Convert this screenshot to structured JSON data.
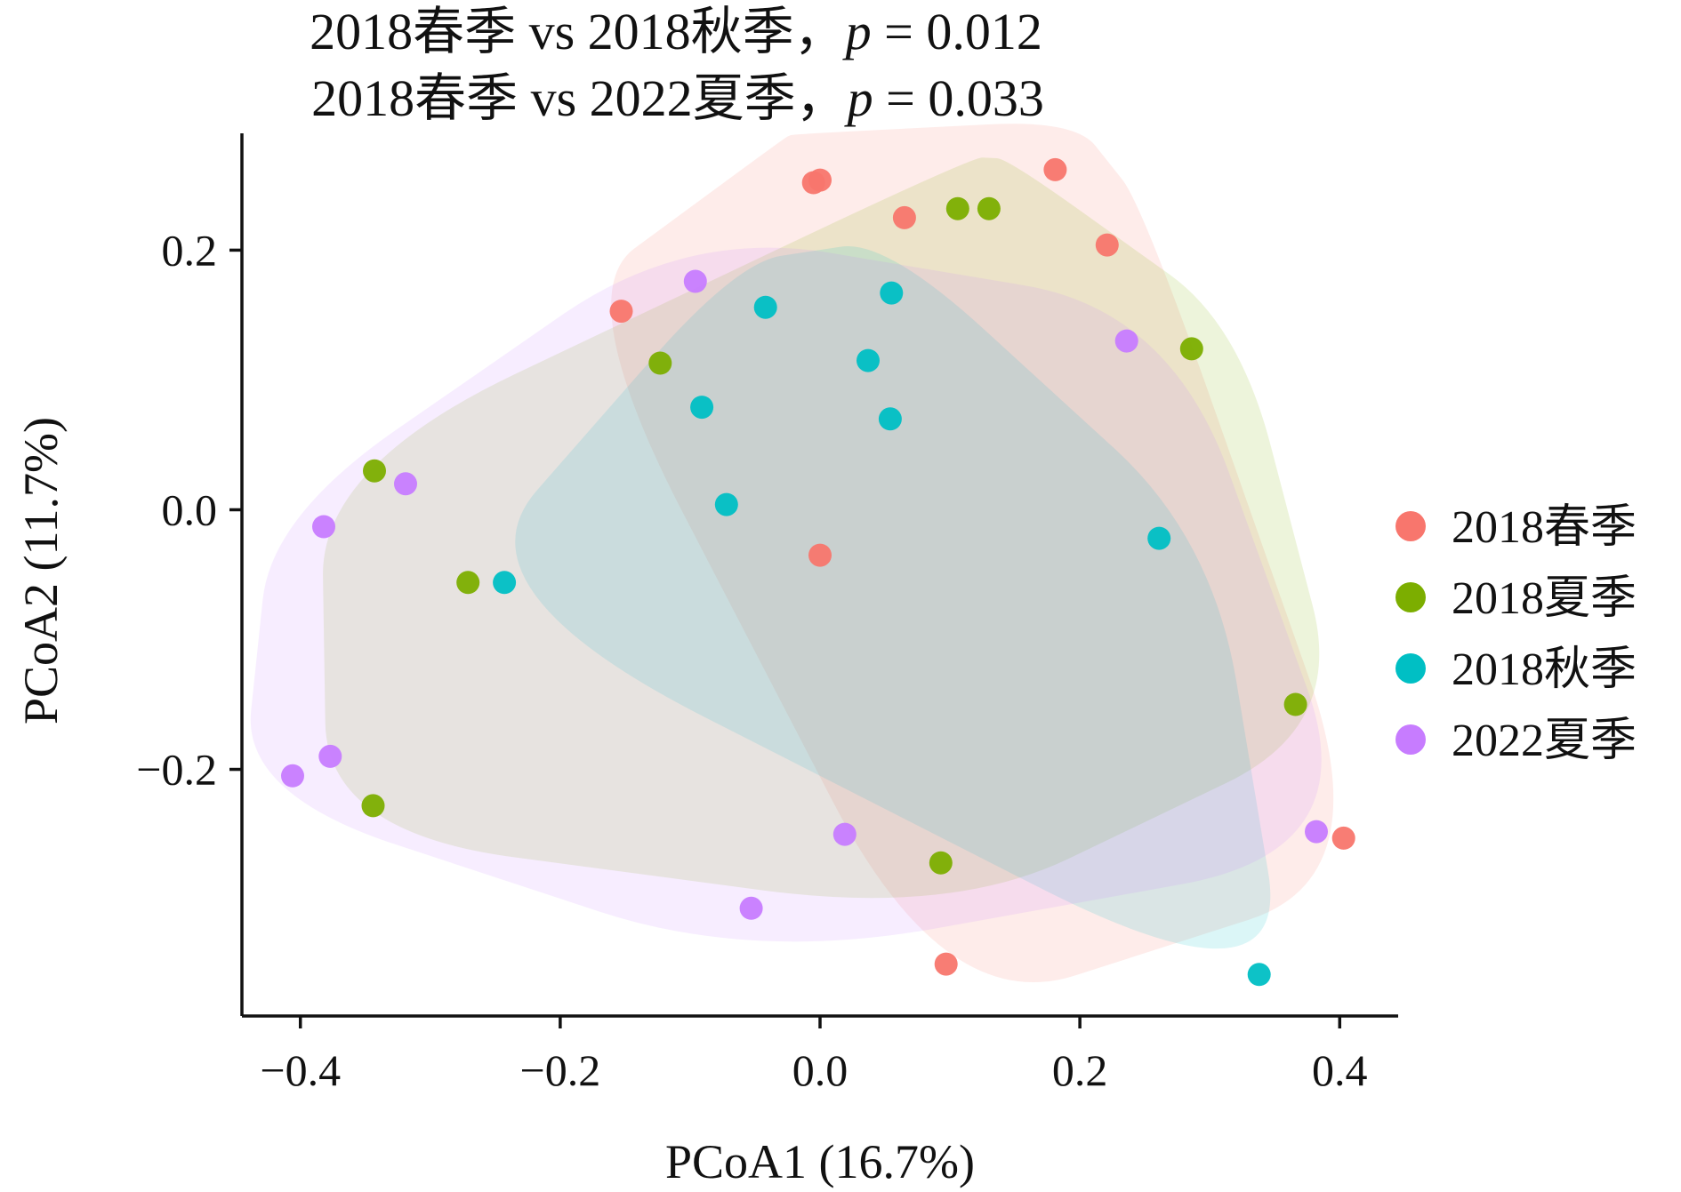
{
  "chart_data": {
    "type": "scatter",
    "title_lines": [
      {
        "prefix": "2018春季 vs 2018秋季，",
        "p_symbol": "p",
        "p_text": " = 0.012"
      },
      {
        "prefix": "2018春季 vs 2022夏季，",
        "p_symbol": "p",
        "p_text": " = 0.033"
      }
    ],
    "xlabel": "PCoA1 (16.7%)",
    "ylabel": "PCoA2 (11.7%)",
    "xlim": [
      -0.445,
      0.445
    ],
    "ylim": [
      -0.39,
      0.29
    ],
    "xticks": [
      -0.4,
      -0.2,
      0.0,
      0.2,
      0.4
    ],
    "xtick_labels": [
      "−0.4",
      "−0.2",
      "0.0",
      "0.2",
      "0.4"
    ],
    "yticks": [
      -0.2,
      0.0,
      0.2
    ],
    "ytick_labels": [
      "−0.2",
      "0.0",
      "0.2"
    ],
    "grid": false,
    "legend_position": "right",
    "series": [
      {
        "name": "2018春季",
        "color": "#F8766D",
        "points": [
          [
            -0.005,
            0.252
          ],
          [
            0.0,
            0.254
          ],
          [
            0.065,
            0.225
          ],
          [
            0.181,
            0.262
          ],
          [
            0.221,
            0.204
          ],
          [
            -0.153,
            0.153
          ],
          [
            0.0,
            -0.035
          ],
          [
            0.097,
            -0.35
          ],
          [
            0.403,
            -0.253
          ]
        ]
      },
      {
        "name": "2018夏季",
        "color": "#7CAE00",
        "points": [
          [
            0.106,
            0.232
          ],
          [
            0.13,
            0.232
          ],
          [
            0.286,
            0.124
          ],
          [
            -0.123,
            0.113
          ],
          [
            -0.343,
            0.03
          ],
          [
            -0.271,
            -0.056
          ],
          [
            0.366,
            -0.15
          ],
          [
            -0.344,
            -0.228
          ],
          [
            0.093,
            -0.272
          ]
        ]
      },
      {
        "name": "2018秋季",
        "color": "#00BFC4",
        "points": [
          [
            -0.042,
            0.156
          ],
          [
            0.055,
            0.167
          ],
          [
            0.037,
            0.115
          ],
          [
            -0.091,
            0.079
          ],
          [
            0.054,
            0.07
          ],
          [
            -0.072,
            0.004
          ],
          [
            0.261,
            -0.022
          ],
          [
            -0.243,
            -0.056
          ],
          [
            0.338,
            -0.358
          ]
        ]
      },
      {
        "name": "2022夏季",
        "color": "#C77CFF",
        "points": [
          [
            -0.096,
            0.176
          ],
          [
            0.236,
            0.13
          ],
          [
            -0.319,
            0.02
          ],
          [
            -0.382,
            -0.013
          ],
          [
            -0.377,
            -0.19
          ],
          [
            -0.406,
            -0.205
          ],
          [
            0.019,
            -0.25
          ],
          [
            0.382,
            -0.248
          ],
          [
            -0.053,
            -0.307
          ]
        ]
      }
    ]
  }
}
